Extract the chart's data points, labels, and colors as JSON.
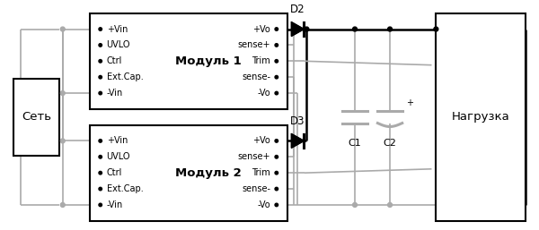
{
  "bg_color": "#ffffff",
  "lk": "#000000",
  "lg": "#aaaaaa",
  "lw_b": 1.8,
  "lw_g": 1.2,
  "seti_label": "Сеть",
  "module1_label": "Модуль 1",
  "module2_label": "Модуль 2",
  "nagruzka_label": "Нагрузка",
  "m1_left_pins": [
    "+Vin",
    "UVLO",
    "Ctrl",
    "Ext.Cap.",
    "-Vin"
  ],
  "m1_right_pins": [
    "+Vo",
    "sense+",
    "Trim",
    "sense-",
    "-Vo"
  ],
  "m2_left_pins": [
    "+Vin",
    "UVLO",
    "Ctrl",
    "Ext.Cap.",
    "-Vin"
  ],
  "m2_right_pins": [
    "+Vo",
    "sense+",
    "Trim",
    "sense-",
    "-Vo"
  ],
  "D2_label": "D2",
  "D3_label": "D3",
  "C1_label": "C1",
  "C2_label": "C2",
  "pfs": 7.0,
  "lfs": 9.5
}
